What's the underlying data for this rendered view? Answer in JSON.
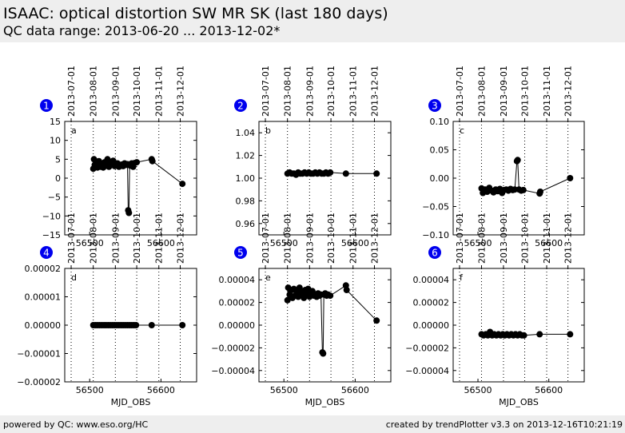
{
  "header": {
    "title": "ISAAC: optical distortion SW MR SK (last 180 days)",
    "subtitle": "QC data range: 2013-06-20 ... 2013-12-02*"
  },
  "footer": {
    "left": "powered by QC: www.eso.org/HC",
    "right": "created by trendPlotter v3.3 on 2013-12-16T10:21:19"
  },
  "colors": {
    "badge": "#0000ee",
    "marker": "#000000"
  },
  "chart_data": [
    {
      "type": "line",
      "number": "1",
      "letter": "a",
      "xlabel": "",
      "xlim": [
        56465,
        56650
      ],
      "ylim": [
        -15,
        15
      ],
      "yticks": [
        "15",
        "10",
        "5",
        "0",
        "−5",
        "−10",
        "−15"
      ],
      "ytick_values": [
        15,
        10,
        5,
        0,
        -5,
        -10,
        -15
      ],
      "xticks": [
        "56500",
        "56600"
      ],
      "xtick_values": [
        56500,
        56600
      ],
      "date_ticks": [
        "2013-07-01",
        "2013-08-01",
        "2013-09-01",
        "2013-10-01",
        "2013-11-01",
        "2013-12-01"
      ],
      "date_mjd": [
        56474,
        56505,
        56536,
        56566,
        56597,
        56627
      ],
      "x": [
        56505,
        56506,
        56507,
        56509,
        56511,
        56513,
        56515,
        56517,
        56519,
        56521,
        56523,
        56525,
        56527,
        56529,
        56531,
        56533,
        56535,
        56537,
        56539,
        56541,
        56543,
        56545,
        56547,
        56549,
        56551,
        56553,
        56554,
        56555,
        56556,
        56557,
        56559,
        56561,
        56563,
        56566,
        56587,
        56588,
        56630
      ],
      "y": [
        2.5,
        5,
        3.5,
        4,
        2.8,
        4.5,
        3,
        3.8,
        2.8,
        4.2,
        3.5,
        5,
        3,
        4.2,
        3.8,
        4.6,
        3.2,
        3.5,
        3.9,
        3,
        3.4,
        3.6,
        3.2,
        3.9,
        3.5,
        3.7,
        -8.5,
        -9.2,
        3.6,
        3.3,
        3.9,
        3.0,
        4.0,
        4.2,
        5.0,
        4.5,
        -1.5
      ]
    },
    {
      "type": "line",
      "number": "2",
      "letter": "b",
      "xlabel": "",
      "xlim": [
        56465,
        56650
      ],
      "ylim": [
        0.95,
        1.05
      ],
      "yticks": [
        "1.04",
        "1.02",
        "1.00",
        "0.98",
        "0.96"
      ],
      "ytick_values": [
        1.04,
        1.02,
        1.0,
        0.98,
        0.96
      ],
      "xticks": [
        "56500",
        "56600"
      ],
      "xtick_values": [
        56500,
        56600
      ],
      "date_ticks": [
        "2013-07-01",
        "2013-08-01",
        "2013-09-01",
        "2013-10-01",
        "2013-11-01",
        "2013-12-01"
      ],
      "date_mjd": [
        56474,
        56505,
        56536,
        56566,
        56597,
        56627
      ],
      "x": [
        56505,
        56508,
        56511,
        56514,
        56517,
        56520,
        56523,
        56526,
        56529,
        56532,
        56535,
        56538,
        56541,
        56544,
        56547,
        56550,
        56553,
        56556,
        56559,
        56562,
        56565,
        56587,
        56630
      ],
      "y": [
        1.004,
        1.005,
        1.004,
        1.004,
        1.003,
        1.005,
        1.004,
        1.004,
        1.005,
        1.004,
        1.005,
        1.004,
        1.004,
        1.005,
        1.004,
        1.005,
        1.004,
        1.004,
        1.005,
        1.004,
        1.005,
        1.004,
        1.004
      ]
    },
    {
      "type": "line",
      "number": "3",
      "letter": "c",
      "xlabel": "",
      "xlim": [
        56465,
        56650
      ],
      "ylim": [
        -0.1,
        0.1
      ],
      "yticks": [
        "0.10",
        "0.05",
        "0.00",
        "−0.05",
        "−0.10"
      ],
      "ytick_values": [
        0.1,
        0.05,
        0.0,
        -0.05,
        -0.1
      ],
      "xticks": [
        "56500",
        "56600"
      ],
      "xtick_values": [
        56500,
        56600
      ],
      "date_ticks": [
        "2013-07-01",
        "2013-08-01",
        "2013-09-01",
        "2013-10-01",
        "2013-11-01",
        "2013-12-01"
      ],
      "date_mjd": [
        56474,
        56505,
        56536,
        56566,
        56597,
        56627
      ],
      "x": [
        56505,
        56507,
        56510,
        56513,
        56516,
        56519,
        56522,
        56525,
        56528,
        56531,
        56534,
        56537,
        56540,
        56543,
        56546,
        56549,
        56552,
        56555,
        56556,
        56558,
        56561,
        56564,
        56587,
        56588,
        56630
      ],
      "y": [
        -0.018,
        -0.026,
        -0.02,
        -0.024,
        -0.017,
        -0.022,
        -0.025,
        -0.02,
        -0.023,
        -0.019,
        -0.026,
        -0.021,
        -0.02,
        -0.022,
        -0.019,
        -0.021,
        -0.02,
        0.03,
        0.032,
        -0.02,
        -0.022,
        -0.021,
        -0.027,
        -0.024,
        0.0
      ]
    },
    {
      "type": "line",
      "number": "4",
      "letter": "d",
      "xlabel": "MJD_OBS",
      "xlim": [
        56465,
        56650
      ],
      "ylim": [
        -2e-05,
        2e-05
      ],
      "yticks": [
        "0.00002",
        "0.00001",
        "0.00000",
        "−0.00001",
        "−0.00002"
      ],
      "ytick_values": [
        2e-05,
        1e-05,
        0,
        -1e-05,
        -2e-05
      ],
      "xticks": [
        "56500",
        "56600"
      ],
      "xtick_values": [
        56500,
        56600
      ],
      "date_ticks": [
        "2013-07-01",
        "2013-08-01",
        "2013-09-01",
        "2013-10-01",
        "2013-11-01",
        "2013-12-01"
      ],
      "date_mjd": [
        56474,
        56505,
        56536,
        56566,
        56597,
        56627
      ],
      "x": [
        56505,
        56508,
        56511,
        56514,
        56517,
        56520,
        56523,
        56526,
        56529,
        56532,
        56535,
        56538,
        56541,
        56544,
        56547,
        56550,
        56553,
        56556,
        56559,
        56562,
        56565,
        56587,
        56630
      ],
      "y": [
        0,
        0,
        0,
        0,
        0,
        0,
        0,
        0,
        0,
        0,
        0,
        0,
        0,
        0,
        0,
        0,
        0,
        0,
        0,
        0,
        0,
        0,
        0
      ]
    },
    {
      "type": "line",
      "number": "5",
      "letter": "e",
      "xlabel": "MJD_OBS",
      "xlim": [
        56465,
        56650
      ],
      "ylim": [
        -5e-05,
        5e-05
      ],
      "yticks": [
        "0.00004",
        "0.00002",
        "0.00000",
        "−0.00002",
        "−0.00004"
      ],
      "ytick_values": [
        4e-05,
        2e-05,
        0,
        -2e-05,
        -4e-05
      ],
      "xticks": [
        "56500",
        "56600"
      ],
      "xtick_values": [
        56500,
        56600
      ],
      "date_ticks": [
        "2013-07-01",
        "2013-08-01",
        "2013-09-01",
        "2013-10-01",
        "2013-11-01",
        "2013-12-01"
      ],
      "date_mjd": [
        56474,
        56505,
        56536,
        56566,
        56597,
        56627
      ],
      "x": [
        56505,
        56506,
        56508,
        56510,
        56512,
        56514,
        56516,
        56518,
        56520,
        56522,
        56524,
        56526,
        56528,
        56530,
        56532,
        56534,
        56536,
        56538,
        56540,
        56542,
        56544,
        56546,
        56548,
        56550,
        56552,
        56554,
        56555,
        56556,
        56558,
        56560,
        56562,
        56565,
        56587,
        56588,
        56630
      ],
      "y": [
        2.2e-05,
        3.3e-05,
        2.7e-05,
        3.1e-05,
        2.4e-05,
        3.2e-05,
        2.6e-05,
        3e-05,
        2.5e-05,
        3.3e-05,
        2.7e-05,
        2.9e-05,
        2.4e-05,
        3.1e-05,
        2.8e-05,
        3.2e-05,
        2.5e-05,
        2.8e-05,
        3e-05,
        2.6e-05,
        2.7e-05,
        2.5e-05,
        2.8e-05,
        2.6e-05,
        2.7e-05,
        -2.4e-05,
        -2.5e-05,
        2.7e-05,
        2.8e-05,
        2.6e-05,
        2.7e-05,
        2.6e-05,
        3.5e-05,
        3.1e-05,
        4e-06
      ]
    },
    {
      "type": "line",
      "number": "6",
      "letter": "f",
      "xlabel": "MJD_OBS",
      "xlim": [
        56465,
        56650
      ],
      "ylim": [
        -5e-05,
        5e-05
      ],
      "yticks": [
        "0.00004",
        "0.00002",
        "0.00000",
        "−0.00002",
        "−0.00004"
      ],
      "ytick_values": [
        4e-05,
        2e-05,
        0,
        -2e-05,
        -4e-05
      ],
      "xticks": [
        "56500",
        "56600"
      ],
      "xtick_values": [
        56500,
        56600
      ],
      "date_ticks": [
        "2013-07-01",
        "2013-08-01",
        "2013-09-01",
        "2013-10-01",
        "2013-11-01",
        "2013-12-01"
      ],
      "date_mjd": [
        56474,
        56505,
        56536,
        56566,
        56597,
        56627
      ],
      "x": [
        56505,
        56508,
        56511,
        56514,
        56517,
        56520,
        56523,
        56526,
        56529,
        56532,
        56535,
        56538,
        56541,
        56544,
        56547,
        56550,
        56553,
        56556,
        56559,
        56562,
        56565,
        56587,
        56630
      ],
      "y": [
        -8e-06,
        -9e-06,
        -8e-06,
        -9e-06,
        -6e-06,
        -9e-06,
        -8e-06,
        -9e-06,
        -8e-06,
        -9e-06,
        -8e-06,
        -9e-06,
        -8e-06,
        -9e-06,
        -8e-06,
        -9e-06,
        -8e-06,
        -9e-06,
        -8e-06,
        -9e-06,
        -9e-06,
        -8e-06,
        -8e-06
      ]
    }
  ]
}
